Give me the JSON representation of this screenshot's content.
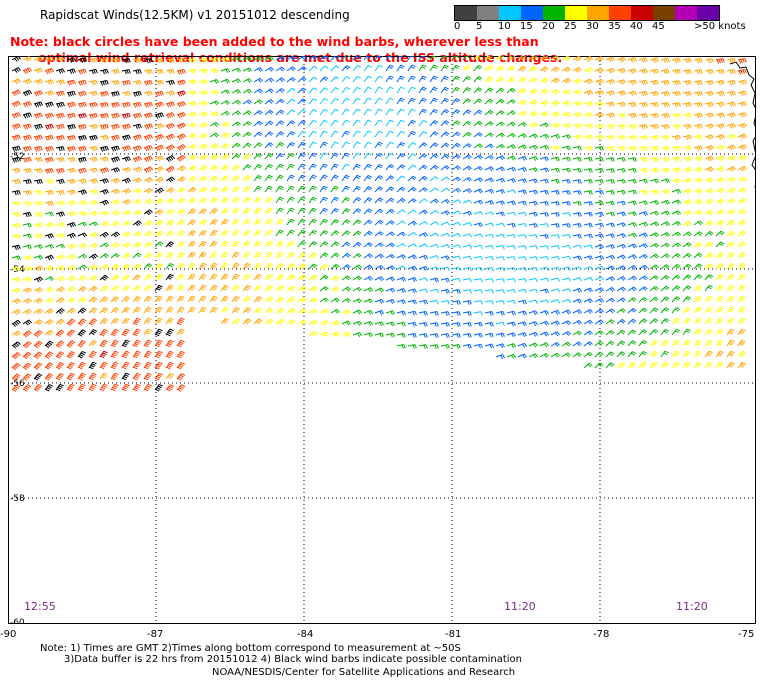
{
  "header": {
    "title": "Rapidscat Winds(12.5KM) v1 20151012 descending",
    "note_line1": "Note: black circles have been added to the wind barbs, wherever less than",
    "note_line2": "optimal wind retrieval conditions are met due to the ISS altitude changes."
  },
  "legend": {
    "units": ">50 knots",
    "labels": [
      "0",
      "5",
      "10",
      "15",
      "20",
      "25",
      "30",
      "35",
      "40",
      "45",
      ">50 knots"
    ],
    "colors": [
      "#404040",
      "#808080",
      "#00c8ff",
      "#0064ff",
      "#00b400",
      "#ffff00",
      "#ffa500",
      "#ff4000",
      "#c80000",
      "#7a4000",
      "#b400b4",
      "#6a00a8"
    ]
  },
  "axes": {
    "x_labels": [
      "-90",
      "-87",
      "-84",
      "-81",
      "-78",
      "-75"
    ],
    "y_labels": [
      "-50",
      "-52",
      "-54",
      "-56",
      "-58",
      "-60"
    ]
  },
  "times": [
    "12:55",
    "11:20",
    "11:20"
  ],
  "footer": {
    "line1": "Note: 1) Times are GMT 2)Times along bottom correspond to measurement at ~50S",
    "line2": "3)Data buffer is 22 hrs from 20151012 4) Black wind barbs indicate possible contamination",
    "line3": "NOAA/NESDIS/Center for Satellite Applications and Research"
  }
}
